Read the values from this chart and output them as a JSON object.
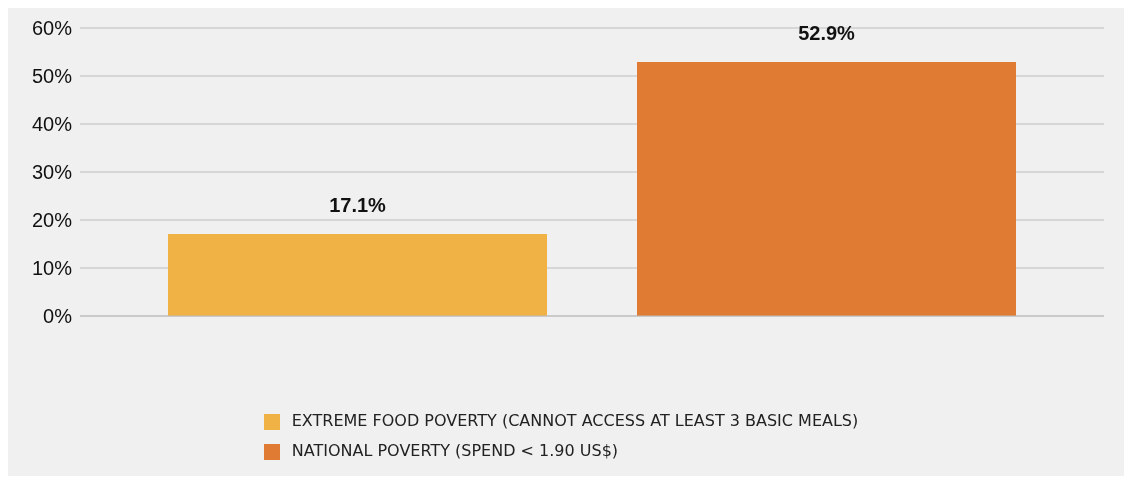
{
  "chart_data": {
    "type": "bar",
    "categories": [
      null
    ],
    "series": [
      {
        "name": "EXTREME FOOD POVERTY (CANNOT ACCESS AT LEAST 3 BASIC MEALS)",
        "color": "#f0b145",
        "values": [
          17.1
        ],
        "value_labels": [
          "17.1%"
        ]
      },
      {
        "name": "NATIONAL POVERTY (SPEND < 1.90 US$)",
        "color": "#e07b33",
        "values": [
          52.9
        ],
        "value_labels": [
          "52.9%"
        ]
      }
    ],
    "ylim": [
      0,
      60
    ],
    "yticks": [
      {
        "value": 0,
        "label": "0%"
      },
      {
        "value": 10,
        "label": "10%"
      },
      {
        "value": 20,
        "label": "20%"
      },
      {
        "value": 30,
        "label": "30%"
      },
      {
        "value": 40,
        "label": "40%"
      },
      {
        "value": 50,
        "label": "50%"
      },
      {
        "value": 60,
        "label": "60%"
      }
    ],
    "grid": "y",
    "legend": "bottom",
    "tick_labels": "y"
  }
}
